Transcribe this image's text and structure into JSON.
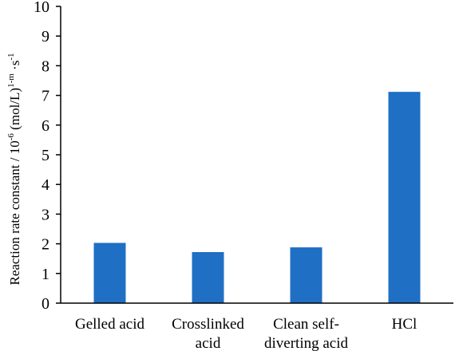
{
  "chart_data": {
    "type": "bar",
    "categories": [
      "Gelled acid",
      "Crosslinked acid",
      "Clean self-diverting acid",
      "HCl"
    ],
    "category_label_lines": [
      [
        "Gelled acid"
      ],
      [
        "Crosslinked",
        "acid"
      ],
      [
        "Clean self-",
        "diverting acid"
      ],
      [
        "HCl"
      ]
    ],
    "values": [
      2.03,
      1.72,
      1.88,
      7.12
    ],
    "title": "",
    "xlabel": "",
    "ylabel": {
      "main": "Reaction rate constant / 10",
      "exp1": "-6",
      "mid": " (mol/L)",
      "exp2": "1-m",
      "tail": " ·s",
      "exp3": "-1"
    },
    "ylim": [
      0,
      10
    ],
    "yticks": [
      0,
      1,
      2,
      3,
      4,
      5,
      6,
      7,
      8,
      9,
      10
    ],
    "grid": false,
    "legend": "none",
    "bar_color": "#1f6fc5",
    "axis_color": "#000000"
  }
}
